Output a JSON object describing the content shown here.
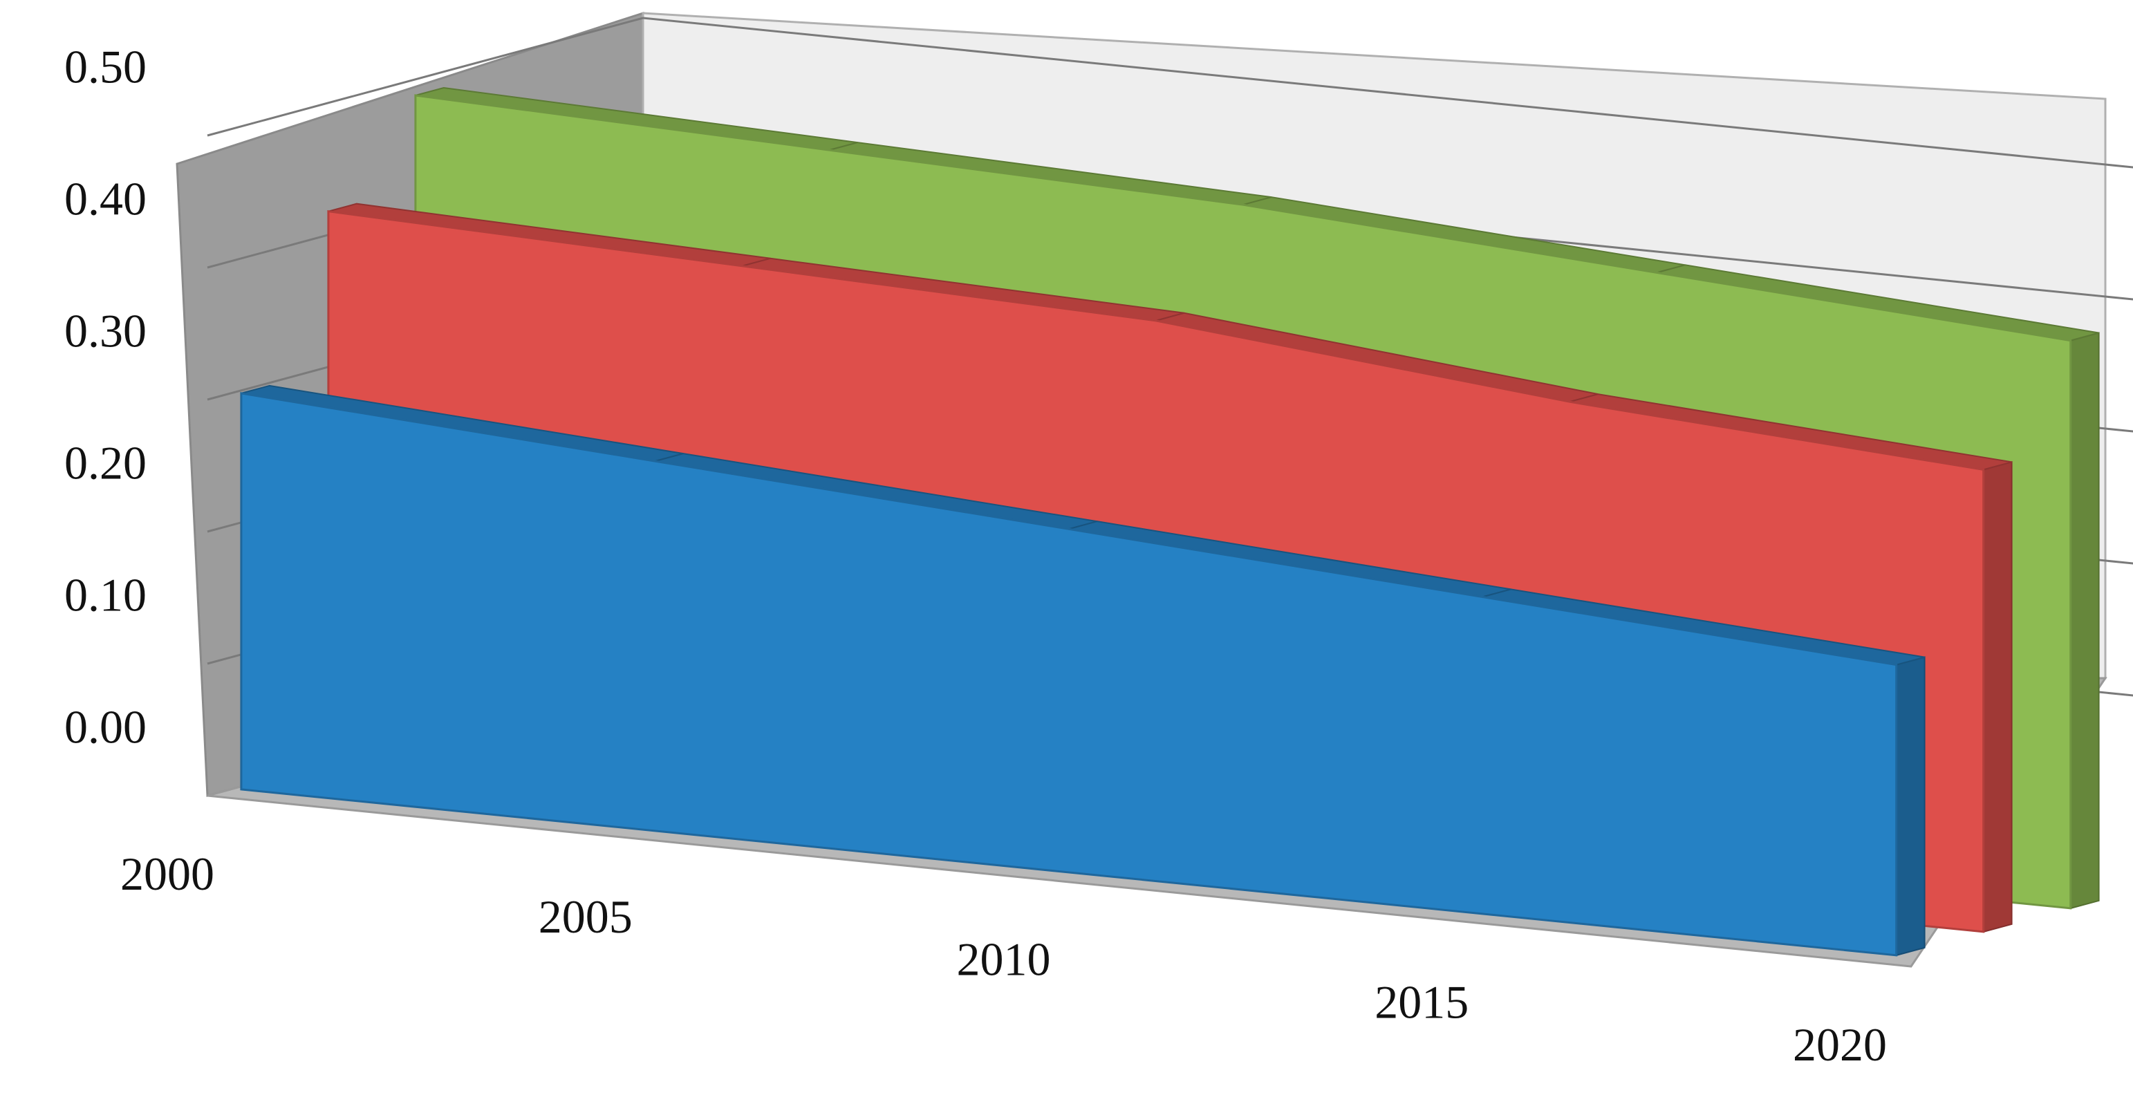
{
  "chart_data": {
    "type": "area",
    "variant": "3d-ribbon",
    "title": "",
    "xlabel": "",
    "ylabel": "",
    "x": [
      2000,
      2005,
      2010,
      2015,
      2020
    ],
    "x_tick_labels": [
      "2000",
      "2005",
      "2010",
      "2015",
      "2020"
    ],
    "y_tick_labels": [
      "0.00",
      "0.10",
      "0.20",
      "0.30",
      "0.40",
      "0.50"
    ],
    "ylim": [
      0,
      0.5
    ],
    "grid": true,
    "legend": "none",
    "series": [
      {
        "color": "#8dbb52",
        "values": [
          0.49,
          0.48,
          0.47,
          0.45,
          0.43
        ]
      },
      {
        "color": "#de4f4b",
        "values": [
          0.42,
          0.41,
          0.4,
          0.37,
          0.35
        ]
      },
      {
        "color": "#2581c4",
        "values": [
          0.3,
          0.28,
          0.26,
          0.24,
          0.22
        ]
      }
    ]
  }
}
